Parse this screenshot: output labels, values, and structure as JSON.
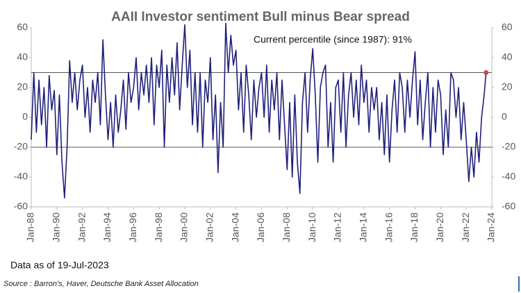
{
  "chart_data": {
    "type": "line",
    "title": "AAII Investor sentiment Bull minus Bear spread",
    "annotation": "Current percentile (since 1987): 91%",
    "note": "Data as of 19-Jul-2023",
    "source": "Source : Barron's, Haver, Deutsche Bank Asset Allocation",
    "color": "#1f1f7a",
    "highlight_color": "#c0504d",
    "reference_lines": [
      30,
      -20
    ],
    "x": [
      1988,
      1988.2,
      1988.4,
      1988.6,
      1988.8,
      1989,
      1989.2,
      1989.4,
      1989.6,
      1989.8,
      1990,
      1990.2,
      1990.4,
      1990.6,
      1990.8,
      1991,
      1991.2,
      1991.4,
      1991.6,
      1991.8,
      1992,
      1992.2,
      1992.4,
      1992.6,
      1992.8,
      1993,
      1993.2,
      1993.4,
      1993.6,
      1993.8,
      1994,
      1994.2,
      1994.4,
      1994.6,
      1994.8,
      1995,
      1995.2,
      1995.4,
      1995.6,
      1995.8,
      1996,
      1996.2,
      1996.4,
      1996.6,
      1996.8,
      1997,
      1997.2,
      1997.4,
      1997.6,
      1997.8,
      1998,
      1998.2,
      1998.4,
      1998.6,
      1998.8,
      1999,
      1999.2,
      1999.4,
      1999.6,
      1999.8,
      2000,
      2000.2,
      2000.4,
      2000.6,
      2000.8,
      2001,
      2001.2,
      2001.4,
      2001.6,
      2001.8,
      2002,
      2002.2,
      2002.4,
      2002.6,
      2002.8,
      2003,
      2003.2,
      2003.4,
      2003.6,
      2003.8,
      2004,
      2004.2,
      2004.4,
      2004.6,
      2004.8,
      2005,
      2005.2,
      2005.4,
      2005.6,
      2005.8,
      2006,
      2006.2,
      2006.4,
      2006.6,
      2006.8,
      2007,
      2007.2,
      2007.4,
      2007.6,
      2007.8,
      2008,
      2008.2,
      2008.4,
      2008.6,
      2008.8,
      2009,
      2009.2,
      2009.4,
      2009.6,
      2009.8,
      2010,
      2010.2,
      2010.4,
      2010.6,
      2010.8,
      2011,
      2011.2,
      2011.4,
      2011.6,
      2011.8,
      2012,
      2012.2,
      2012.4,
      2012.6,
      2012.8,
      2013,
      2013.2,
      2013.4,
      2013.6,
      2013.8,
      2014,
      2014.2,
      2014.4,
      2014.6,
      2014.8,
      2015,
      2015.2,
      2015.4,
      2015.6,
      2015.8,
      2016,
      2016.2,
      2016.4,
      2016.6,
      2016.8,
      2017,
      2017.2,
      2017.4,
      2017.6,
      2017.8,
      2018,
      2018.2,
      2018.4,
      2018.6,
      2018.8,
      2019,
      2019.2,
      2019.4,
      2019.6,
      2019.8,
      2020,
      2020.2,
      2020.4,
      2020.6,
      2020.8,
      2021,
      2021.2,
      2021.4,
      2021.6,
      2021.8,
      2022,
      2022.2,
      2022.4,
      2022.6,
      2022.8,
      2023,
      2023.2,
      2023.4,
      2023.55
    ],
    "values": [
      -15,
      30,
      -10,
      25,
      -5,
      20,
      -20,
      28,
      5,
      18,
      -25,
      15,
      -30,
      -54,
      -20,
      38,
      10,
      30,
      5,
      25,
      35,
      0,
      20,
      -10,
      25,
      10,
      30,
      -5,
      52,
      15,
      -15,
      10,
      -20,
      15,
      -10,
      5,
      25,
      -8,
      30,
      10,
      20,
      40,
      5,
      30,
      15,
      35,
      10,
      40,
      -5,
      35,
      20,
      45,
      -20,
      35,
      10,
      40,
      15,
      50,
      5,
      35,
      62,
      20,
      45,
      -5,
      30,
      -10,
      30,
      -20,
      25,
      10,
      40,
      -15,
      15,
      -37,
      10,
      -20,
      63,
      30,
      55,
      35,
      45,
      5,
      30,
      -10,
      35,
      15,
      -15,
      25,
      0,
      20,
      30,
      0,
      35,
      -10,
      25,
      5,
      30,
      -15,
      25,
      -5,
      -35,
      10,
      -40,
      15,
      -30,
      -51,
      10,
      30,
      -10,
      25,
      46,
      15,
      -30,
      20,
      30,
      35,
      -20,
      10,
      -30,
      20,
      25,
      -10,
      30,
      -20,
      15,
      30,
      0,
      25,
      -5,
      35,
      10,
      25,
      -10,
      20,
      5,
      20,
      -15,
      10,
      -25,
      15,
      -30,
      5,
      25,
      -10,
      30,
      20,
      -10,
      25,
      0,
      25,
      44,
      -5,
      25,
      -15,
      10,
      30,
      -20,
      20,
      -10,
      25,
      15,
      -25,
      5,
      -20,
      30,
      25,
      0,
      20,
      -15,
      10,
      -15,
      -43,
      -20,
      -40,
      -10,
      -30,
      0,
      15,
      30
    ],
    "xlim": [
      1988,
      2024
    ],
    "xticks": [
      {
        "value": 1988,
        "label": "Jan-88"
      },
      {
        "value": 1990,
        "label": "Jan-90"
      },
      {
        "value": 1992,
        "label": "Jan-92"
      },
      {
        "value": 1994,
        "label": "Jan-94"
      },
      {
        "value": 1996,
        "label": "Jan-96"
      },
      {
        "value": 1998,
        "label": "Jan-98"
      },
      {
        "value": 2000,
        "label": "Jan-00"
      },
      {
        "value": 2002,
        "label": "Jan-02"
      },
      {
        "value": 2004,
        "label": "Jan-04"
      },
      {
        "value": 2006,
        "label": "Jan-06"
      },
      {
        "value": 2008,
        "label": "Jan-08"
      },
      {
        "value": 2010,
        "label": "Jan-10"
      },
      {
        "value": 2012,
        "label": "Jan-12"
      },
      {
        "value": 2014,
        "label": "Jan-14"
      },
      {
        "value": 2016,
        "label": "Jan-16"
      },
      {
        "value": 2018,
        "label": "Jan-18"
      },
      {
        "value": 2020,
        "label": "Jan-20"
      },
      {
        "value": 2022,
        "label": "Jan-22"
      },
      {
        "value": 2024,
        "label": "Jan-24"
      }
    ],
    "ylim": [
      -60,
      60
    ],
    "yticks": [
      -60,
      -40,
      -20,
      0,
      20,
      40,
      60
    ],
    "y2lim": [
      -60,
      60
    ],
    "y2ticks": [
      -60,
      -40,
      -20,
      0,
      20,
      40,
      60
    ]
  }
}
